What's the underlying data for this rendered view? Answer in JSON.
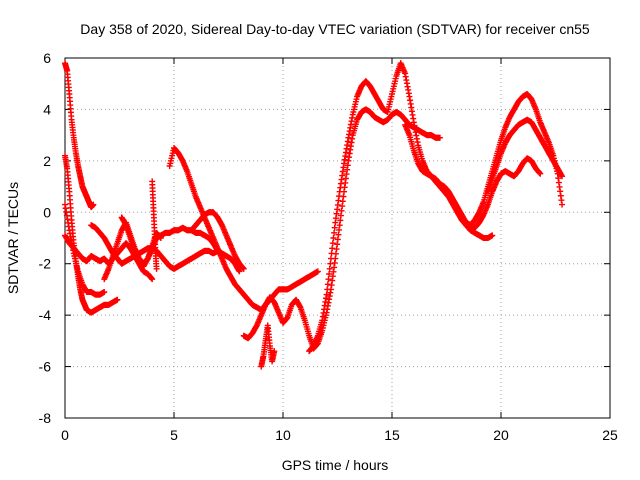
{
  "chart_data": {
    "type": "scatter",
    "title": "Day 358 of 2020, Sidereal Day-to-day VTEC variation (SDTVAR) for receiver cn55",
    "xlabel": "GPS time / hours",
    "ylabel": "SDTVAR / TECUs",
    "xlim": [
      0,
      25
    ],
    "ylim": [
      -8,
      6
    ],
    "xticks": [
      0,
      5,
      10,
      15,
      20,
      25
    ],
    "yticks": [
      -8,
      -6,
      -4,
      -2,
      0,
      2,
      4,
      6
    ],
    "grid": true,
    "marker": "+",
    "color": "#ff0000",
    "series": [
      {
        "x": [
          0.0,
          0.1,
          0.2,
          0.3,
          0.4,
          0.5,
          0.6,
          0.7,
          0.8,
          0.9,
          1.0,
          1.1,
          1.2,
          1.3
        ],
        "y": [
          5.8,
          5.5,
          4.6,
          3.6,
          2.9,
          2.3,
          1.8,
          1.4,
          1.0,
          0.8,
          0.6,
          0.4,
          0.2,
          0.3
        ]
      },
      {
        "x": [
          0.0,
          0.1,
          0.2,
          0.3,
          0.4,
          0.5,
          0.6,
          0.7,
          0.8,
          0.9,
          1.0,
          1.2,
          1.4,
          1.6,
          1.8,
          2.0,
          2.2,
          2.4
        ],
        "y": [
          2.2,
          1.7,
          0.8,
          -0.3,
          -1.2,
          -1.9,
          -2.5,
          -3.0,
          -3.4,
          -3.6,
          -3.8,
          -3.9,
          -3.8,
          -3.7,
          -3.6,
          -3.6,
          -3.5,
          -3.4
        ]
      },
      {
        "x": [
          0.0,
          0.2,
          0.4,
          0.6,
          0.8,
          1.0,
          1.2,
          1.4,
          1.6,
          1.8
        ],
        "y": [
          0.3,
          -0.7,
          -1.6,
          -2.3,
          -2.8,
          -3.1,
          -3.1,
          -3.2,
          -3.2,
          -3.1
        ]
      },
      {
        "x": [
          0.0,
          0.2,
          0.4,
          0.6,
          0.8,
          1.0,
          1.2,
          1.4,
          1.6,
          1.8,
          2.0,
          2.2,
          2.4,
          2.6,
          2.8,
          3.0,
          3.2,
          3.4,
          3.6,
          3.8,
          4.0
        ],
        "y": [
          -0.9,
          -1.2,
          -1.4,
          -1.6,
          -1.8,
          -1.9,
          -1.7,
          -1.8,
          -1.9,
          -1.8,
          -2.0,
          -1.8,
          -1.6,
          -1.4,
          -1.2,
          -1.4,
          -1.7,
          -2.0,
          -2.3,
          -2.4,
          -2.6
        ]
      },
      {
        "x": [
          1.2,
          1.4,
          1.6,
          1.8,
          2.0,
          2.2,
          2.4,
          2.6,
          2.8,
          3.0,
          3.2,
          3.4,
          3.6,
          3.8,
          4.0,
          4.2,
          4.4,
          4.6,
          4.8,
          5.0,
          5.2,
          5.4,
          5.6,
          5.8,
          6.0,
          6.2,
          6.4,
          6.6,
          6.8,
          7.0,
          7.2,
          7.4,
          7.6,
          7.8,
          8.0
        ],
        "y": [
          -0.5,
          -0.6,
          -0.8,
          -1.0,
          -1.3,
          -1.6,
          -1.8,
          -2.0,
          -1.9,
          -1.8,
          -1.7,
          -1.6,
          -1.5,
          -1.4,
          -1.4,
          -1.5,
          -1.7,
          -1.9,
          -2.1,
          -2.2,
          -2.1,
          -2.0,
          -1.9,
          -1.8,
          -1.7,
          -1.6,
          -1.5,
          -1.5,
          -1.6,
          -1.5,
          -1.6,
          -1.7,
          -1.8,
          -2.0,
          -2.3
        ]
      },
      {
        "x": [
          1.8,
          2.0,
          2.2,
          2.4,
          2.6,
          2.8,
          3.0,
          3.2,
          3.4,
          3.6,
          3.8,
          4.0,
          4.2,
          4.4,
          4.6,
          4.8,
          5.0,
          5.2,
          5.4,
          5.6,
          5.8,
          6.0,
          6.2,
          6.4,
          6.6,
          6.8,
          7.0
        ],
        "y": [
          -2.6,
          -2.2,
          -1.7,
          -1.2,
          -0.7,
          -0.4,
          -0.9,
          -1.4,
          -1.8,
          -2.0,
          -1.8,
          -1.4,
          -1.0,
          -0.9,
          -0.8,
          -0.8,
          -0.7,
          -0.7,
          -0.6,
          -0.7,
          -0.7,
          -0.8,
          -0.8,
          -0.9,
          -1.0,
          -1.2,
          -1.5
        ]
      },
      {
        "x": [
          2.6,
          2.8,
          3.0,
          3.2,
          3.4,
          3.6,
          3.8,
          4.0,
          4.2,
          4.4
        ],
        "y": [
          -0.2,
          -0.5,
          -1.0,
          -1.5,
          -1.9,
          -2.1,
          -1.8,
          -1.3,
          -0.8,
          -1.0
        ]
      },
      {
        "x": [
          4.0,
          4.05,
          4.1,
          4.15,
          4.2
        ],
        "y": [
          1.2,
          0.3,
          -0.6,
          -1.5,
          -2.2
        ]
      },
      {
        "x": [
          4.8,
          5.0,
          5.2,
          5.4,
          5.6,
          5.8,
          6.0,
          6.2,
          6.4,
          6.6,
          6.8,
          7.0,
          7.2,
          7.4,
          7.6,
          7.8,
          8.0,
          8.2,
          8.4,
          8.6,
          8.8,
          9.0,
          9.2,
          9.4,
          9.6,
          9.8,
          10.0,
          10.2,
          10.4,
          10.6,
          10.8,
          11.0,
          11.2,
          11.4,
          11.6
        ],
        "y": [
          1.8,
          2.5,
          2.3,
          2.0,
          1.6,
          1.1,
          0.6,
          0.2,
          -0.2,
          -0.6,
          -1.0,
          -1.4,
          -1.8,
          -2.2,
          -2.5,
          -2.8,
          -3.0,
          -3.2,
          -3.4,
          -3.6,
          -3.7,
          -3.8,
          -3.6,
          -3.4,
          -3.2,
          -3.0,
          -3.0,
          -3.0,
          -2.9,
          -2.8,
          -2.7,
          -2.6,
          -2.5,
          -2.4,
          -2.3
        ]
      },
      {
        "x": [
          5.8,
          6.0,
          6.2,
          6.4,
          6.6,
          6.8,
          7.0,
          7.2,
          7.4,
          7.6,
          7.8,
          8.0,
          8.2
        ],
        "y": [
          -0.7,
          -0.5,
          -0.3,
          -0.1,
          0.0,
          0.0,
          -0.2,
          -0.5,
          -0.9,
          -1.3,
          -1.7,
          -2.0,
          -2.2
        ]
      },
      {
        "x": [
          8.2,
          8.4,
          8.6,
          8.8,
          9.0,
          9.2,
          9.4,
          9.6,
          9.8,
          10.0,
          10.2,
          10.4,
          10.6,
          10.8,
          11.0,
          11.2,
          11.4,
          11.6,
          11.8,
          12.0,
          12.2,
          12.4,
          12.6,
          12.8,
          13.0,
          13.2,
          13.4,
          13.6,
          13.8,
          14.0,
          14.2,
          14.4,
          14.6,
          14.8,
          15.0,
          15.2,
          15.4,
          15.6,
          15.8,
          16.0,
          16.2,
          16.4,
          16.6,
          16.8,
          17.0,
          17.2
        ],
        "y": [
          -4.8,
          -4.9,
          -4.7,
          -4.4,
          -4.0,
          -3.6,
          -3.3,
          -3.5,
          -3.9,
          -4.3,
          -4.1,
          -3.6,
          -3.4,
          -3.7,
          -4.2,
          -4.8,
          -5.3,
          -5.1,
          -4.6,
          -3.9,
          -3.0,
          -1.8,
          -0.5,
          0.8,
          2.0,
          3.0,
          3.6,
          3.9,
          4.0,
          3.9,
          3.7,
          3.6,
          3.5,
          3.6,
          3.8,
          3.9,
          3.8,
          3.6,
          3.4,
          3.3,
          3.2,
          3.1,
          3.0,
          3.0,
          2.9,
          2.9
        ]
      },
      {
        "x": [
          9.0,
          9.1,
          9.2,
          9.3,
          9.4,
          9.5,
          9.6
        ],
        "y": [
          -6.0,
          -5.6,
          -5.0,
          -4.4,
          -5.2,
          -5.8,
          -5.4
        ]
      },
      {
        "x": [
          11.2,
          11.4,
          11.6,
          11.8,
          12.0,
          12.2,
          12.4,
          12.6,
          12.8,
          13.0,
          13.2,
          13.4,
          13.6,
          13.8,
          14.0,
          14.2,
          14.4,
          14.6,
          14.8,
          15.0,
          15.2,
          15.4,
          15.6,
          15.8,
          16.0,
          16.2,
          16.4,
          16.6,
          16.8,
          17.0,
          17.2,
          17.4,
          17.6,
          17.8,
          18.0,
          18.2,
          18.4,
          18.6,
          18.8,
          19.0,
          19.2,
          19.4,
          19.6
        ],
        "y": [
          -5.4,
          -5.2,
          -4.8,
          -4.2,
          -3.2,
          -1.8,
          -0.4,
          0.8,
          1.9,
          2.9,
          3.8,
          4.5,
          4.9,
          5.1,
          4.9,
          4.6,
          4.3,
          4.0,
          3.9,
          4.6,
          5.3,
          5.8,
          5.4,
          4.5,
          3.5,
          2.6,
          2.0,
          1.6,
          1.4,
          1.2,
          1.0,
          0.8,
          0.6,
          0.3,
          0.0,
          -0.3,
          -0.5,
          -0.7,
          -0.8,
          -0.9,
          -1.0,
          -1.0,
          -0.9
        ]
      },
      {
        "x": [
          15.6,
          15.8,
          16.0,
          16.2,
          16.4,
          16.6,
          16.8,
          17.0,
          17.2,
          17.4,
          17.6,
          17.8,
          18.0,
          18.2,
          18.4,
          18.6,
          18.8,
          19.0,
          19.2,
          19.4,
          19.6,
          19.8,
          20.0,
          20.2,
          20.4,
          20.6,
          20.8,
          21.0,
          21.2,
          21.4,
          21.6,
          21.8
        ],
        "y": [
          3.4,
          3.0,
          2.4,
          1.9,
          1.6,
          1.5,
          1.4,
          1.3,
          1.1,
          1.0,
          0.8,
          0.5,
          0.2,
          -0.1,
          -0.4,
          -0.5,
          -0.6,
          -0.4,
          -0.1,
          0.3,
          0.8,
          1.2,
          1.5,
          1.6,
          1.5,
          1.4,
          1.6,
          1.9,
          2.1,
          2.0,
          1.7,
          1.5
        ]
      },
      {
        "x": [
          18.6,
          18.8,
          19.0,
          19.2,
          19.4,
          19.6,
          19.8,
          20.0,
          20.2,
          20.4,
          20.6,
          20.8,
          21.0,
          21.2,
          21.4,
          21.6,
          21.8,
          22.0,
          22.2,
          22.4,
          22.6,
          22.8
        ],
        "y": [
          -0.5,
          -0.3,
          0.0,
          0.4,
          1.0,
          1.6,
          2.2,
          2.8,
          3.3,
          3.7,
          4.0,
          4.3,
          4.5,
          4.6,
          4.4,
          4.0,
          3.5,
          3.1,
          2.7,
          2.2,
          1.5,
          0.3
        ]
      },
      {
        "x": [
          19.4,
          19.6,
          19.8,
          20.0,
          20.2,
          20.4,
          20.6,
          20.8,
          21.0,
          21.2,
          21.4,
          21.6,
          21.8,
          22.0,
          22.2,
          22.4,
          22.6,
          22.8
        ],
        "y": [
          0.8,
          1.3,
          1.8,
          2.3,
          2.7,
          3.0,
          3.2,
          3.4,
          3.5,
          3.6,
          3.5,
          3.2,
          2.9,
          2.6,
          2.3,
          2.0,
          1.7,
          1.4
        ]
      }
    ]
  }
}
